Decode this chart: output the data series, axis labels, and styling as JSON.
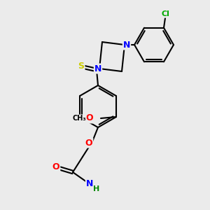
{
  "background_color": "#ebebeb",
  "bond_color": "#000000",
  "atom_colors": {
    "N": "#0000ff",
    "O": "#ff0000",
    "S": "#cccc00",
    "Cl": "#00aa00",
    "C": "#000000",
    "H": "#008800"
  },
  "figsize": [
    3.0,
    3.0
  ],
  "dpi": 100
}
